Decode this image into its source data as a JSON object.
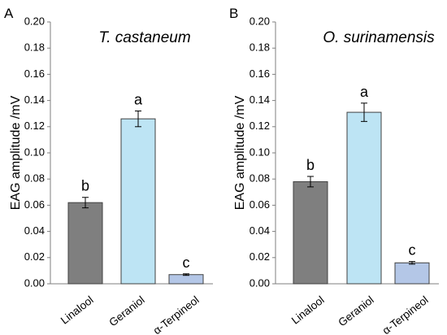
{
  "chart_data": [
    {
      "panel": "A",
      "type": "bar",
      "title": "T. castaneum",
      "ylabel": "EAG amplitude /mV",
      "xlabel": "",
      "ylim": [
        0,
        0.2
      ],
      "yticks": [
        "0.00",
        "0.02",
        "0.04",
        "0.06",
        "0.08",
        "0.10",
        "0.12",
        "0.14",
        "0.16",
        "0.18",
        "0.20"
      ],
      "categories": [
        "Linalool",
        "Geraniol",
        "α-Terpineol"
      ],
      "values": [
        0.062,
        0.126,
        0.007
      ],
      "errors": [
        0.004,
        0.006,
        0.0006
      ],
      "significance": [
        "b",
        "a",
        "c"
      ],
      "colors": [
        "#7f7f7f",
        "#bde4f4",
        "#b4c7e7"
      ],
      "grid": false,
      "legend": "none"
    },
    {
      "panel": "B",
      "type": "bar",
      "title": "O. surinamensis",
      "ylabel": "EAG amplitude /mV",
      "xlabel": "",
      "ylim": [
        0,
        0.2
      ],
      "yticks": [
        "0.00",
        "0.02",
        "0.04",
        "0.06",
        "0.08",
        "0.10",
        "0.12",
        "0.14",
        "0.16",
        "0.18",
        "0.20"
      ],
      "categories": [
        "Linalool",
        "Geraniol",
        "α-Terpineol"
      ],
      "values": [
        0.078,
        0.131,
        0.016
      ],
      "errors": [
        0.004,
        0.007,
        0.001
      ],
      "significance": [
        "b",
        "a",
        "c"
      ],
      "colors": [
        "#7f7f7f",
        "#bde4f4",
        "#b4c7e7"
      ],
      "grid": false,
      "legend": "none"
    }
  ]
}
